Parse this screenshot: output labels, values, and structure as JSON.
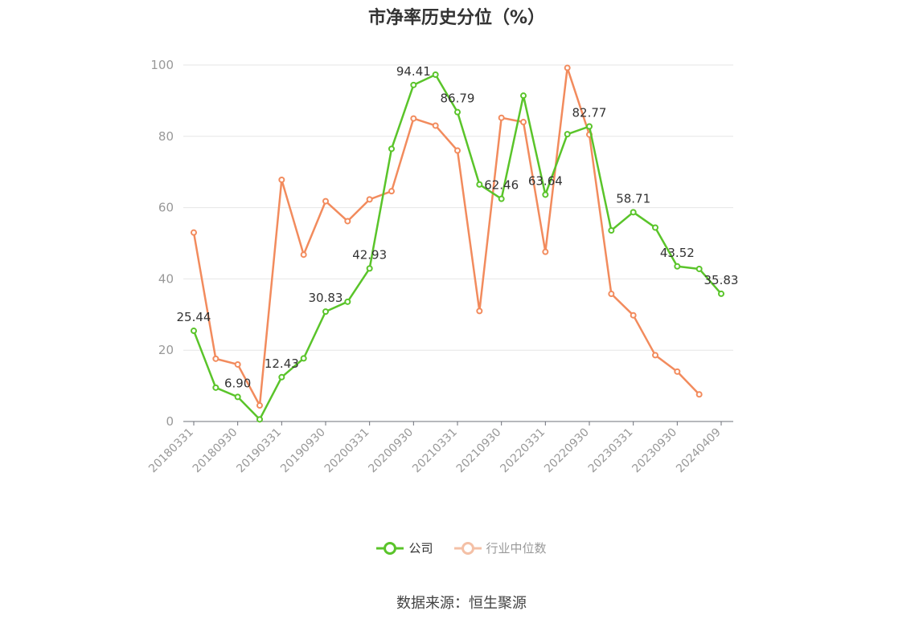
{
  "title": "市净率历史分位（%）",
  "source": "数据来源：恒生聚源",
  "legend": [
    {
      "label": "公司",
      "color": "#5ac42a",
      "active": true
    },
    {
      "label": "行业中位数",
      "color": "#f4c0a6",
      "active": false
    }
  ],
  "chart_data": {
    "type": "line",
    "ylim": [
      0,
      100
    ],
    "yticks": [
      0,
      20,
      40,
      60,
      80,
      100
    ],
    "grid": true,
    "legend_position": "bottom",
    "x": [
      "20180331",
      "20180630",
      "20180930",
      "20181231",
      "20190331",
      "20190630",
      "20190930",
      "20191231",
      "20200331",
      "20200630",
      "20200930",
      "20201231",
      "20210331",
      "20210630",
      "20210930",
      "20211231",
      "20220331",
      "20220630",
      "20220930",
      "20221231",
      "20230331",
      "20230630",
      "20230930",
      "20231231",
      "20240409"
    ],
    "xtick_labels": [
      "20180331",
      "20180930",
      "20190331",
      "20190930",
      "20200331",
      "20200930",
      "20210331",
      "20210930",
      "20220331",
      "20220930",
      "20230331",
      "20230930",
      "20240409"
    ],
    "series": [
      {
        "name": "公司",
        "color": "#5ac42a",
        "values": [
          25.44,
          9.5,
          6.9,
          0.6,
          12.43,
          17.7,
          30.83,
          33.6,
          42.93,
          76.5,
          94.41,
          97.3,
          86.79,
          66.5,
          62.46,
          91.4,
          63.64,
          80.6,
          82.77,
          53.6,
          58.71,
          54.4,
          43.52,
          42.8,
          35.83
        ],
        "labels": {
          "0": "25.44",
          "2": "6.90",
          "4": "12.43",
          "6": "30.83",
          "8": "42.93",
          "10": "94.41",
          "12": "86.79",
          "14": "62.46",
          "16": "63.64",
          "18": "82.77",
          "20": "58.71",
          "22": "43.52",
          "24": "35.83"
        }
      },
      {
        "name": "行业中位数",
        "color": "#f28b5d",
        "values": [
          53.0,
          17.6,
          16.0,
          4.5,
          67.8,
          46.8,
          61.8,
          56.2,
          62.3,
          64.6,
          85.0,
          83.0,
          76.0,
          31.0,
          85.2,
          84.0,
          47.6,
          99.2,
          80.5,
          35.8,
          29.8,
          18.6,
          14.0,
          7.6,
          null
        ]
      }
    ]
  }
}
